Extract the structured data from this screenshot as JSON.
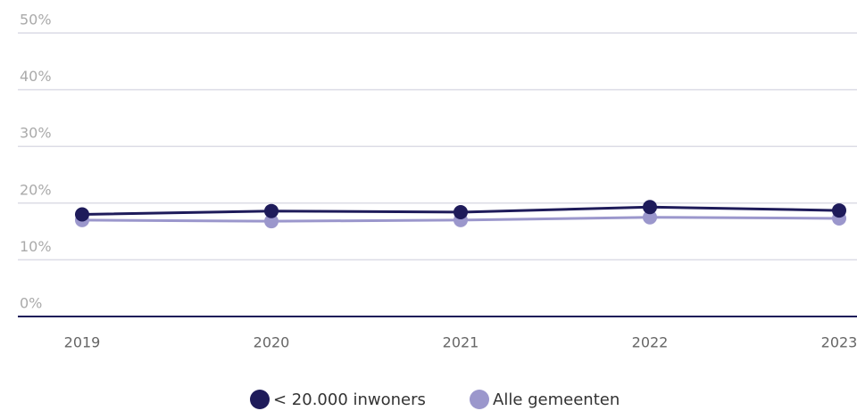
{
  "chart_data": {
    "type": "line",
    "categories": [
      "2019",
      "2020",
      "2021",
      "2022",
      "2023"
    ],
    "series": [
      {
        "name": "< 20.000 inwoners",
        "color": "#1e1b5a",
        "values": [
          18.0,
          18.6,
          18.4,
          19.3,
          18.7
        ]
      },
      {
        "name": "Alle gemeenten",
        "color": "#9b97cc",
        "values": [
          17.0,
          16.8,
          17.0,
          17.5,
          17.3
        ]
      }
    ],
    "ylim": [
      0,
      50
    ],
    "yticks": [
      {
        "value": 0,
        "label": "0%"
      },
      {
        "value": 10,
        "label": "10%"
      },
      {
        "value": 20,
        "label": "20%"
      },
      {
        "value": 30,
        "label": "30%"
      },
      {
        "value": 40,
        "label": "40%"
      },
      {
        "value": 50,
        "label": "50%"
      }
    ],
    "grid": true,
    "legend": "bottom"
  }
}
